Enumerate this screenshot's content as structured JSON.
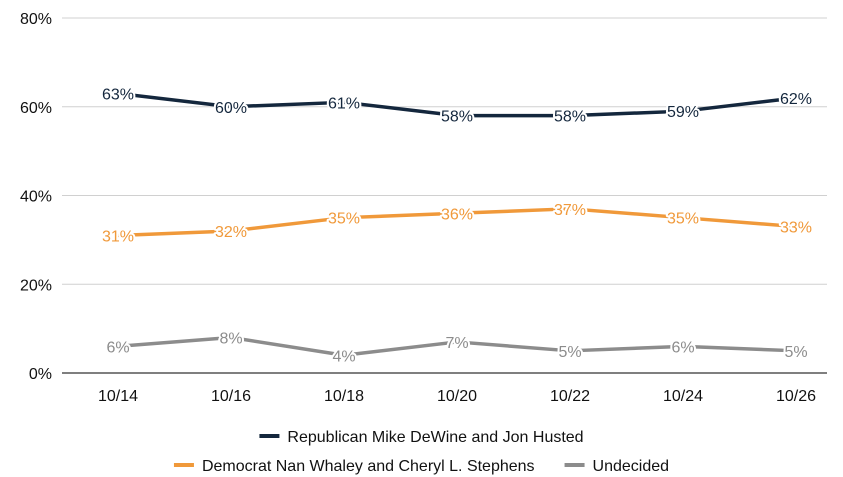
{
  "chart_data": {
    "type": "line",
    "title": "",
    "xlabel": "",
    "ylabel": "",
    "categories": [
      "10/14",
      "10/16",
      "10/18",
      "10/20",
      "10/22",
      "10/24",
      "10/26"
    ],
    "ylim": [
      0,
      80
    ],
    "yticks": [
      0,
      20,
      40,
      60,
      80
    ],
    "ytick_labels": [
      "0%",
      "20%",
      "40%",
      "60%",
      "80%"
    ],
    "grid": true,
    "legend_position": "bottom",
    "series": [
      {
        "name": "Republican Mike DeWine and Jon Husted",
        "color": "#14273d",
        "values": [
          63,
          60,
          61,
          58,
          58,
          59,
          62
        ],
        "labels": [
          "63%",
          "60%",
          "61%",
          "58%",
          "58%",
          "59%",
          "62%"
        ]
      },
      {
        "name": "Democrat Nan Whaley and Cheryl L. Stephens",
        "color": "#f0993a",
        "values": [
          31,
          32,
          35,
          36,
          37,
          35,
          33
        ],
        "labels": [
          "31%",
          "32%",
          "35%",
          "36%",
          "37%",
          "35%",
          "33%"
        ]
      },
      {
        "name": "Undecided",
        "color": "#8c8c8c",
        "values": [
          6,
          8,
          4,
          7,
          5,
          6,
          5
        ],
        "labels": [
          "6%",
          "8%",
          "4%",
          "7%",
          "5%",
          "6%",
          "5%"
        ]
      }
    ]
  }
}
